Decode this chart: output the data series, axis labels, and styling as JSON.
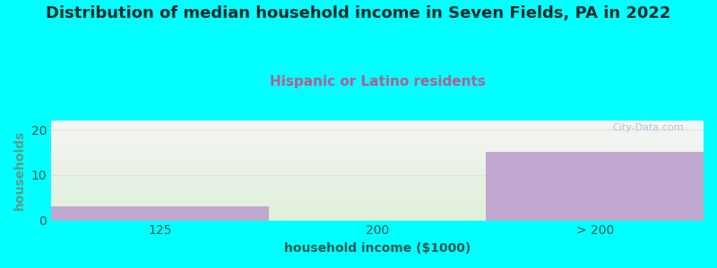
{
  "title": "Distribution of median household income in Seven Fields, PA in 2022",
  "subtitle": "Hispanic or Latino residents",
  "categories": [
    "125",
    "200",
    "> 200"
  ],
  "values": [
    3,
    0,
    15
  ],
  "bar_color": "#C0A8D0",
  "background_fig": "#00FFFF",
  "background_ax_top": "#f5f5f5",
  "background_ax_bottom": "#dff0d8",
  "title_color": "#1a2a2a",
  "subtitle_color": "#b06090",
  "xlabel": "household income ($1000)",
  "ylabel": "households",
  "ylabel_color": "#5a9a90",
  "xlabel_color": "#2a5a55",
  "tick_color": "#2a5a55",
  "ylim": [
    0,
    22
  ],
  "yticks": [
    0,
    10,
    20
  ],
  "grid_color": "#e0e0e0",
  "watermark": "City-Data.com",
  "title_fontsize": 13,
  "subtitle_fontsize": 11,
  "label_fontsize": 10
}
